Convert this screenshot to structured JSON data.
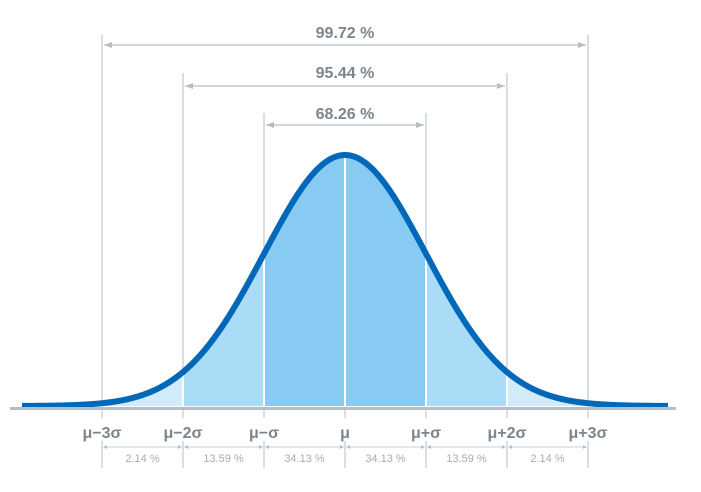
{
  "chart_data": {
    "type": "area",
    "colors": {
      "curve": "#0068b8",
      "band1": "#88cbf2",
      "band2": "#abdcf7",
      "band3": "#d2ebfa",
      "guides": "#b4bec6",
      "text": "#7b858e"
    },
    "ranges": [
      {
        "label": "68.26 %",
        "from_sigma": -1,
        "to_sigma": 1
      },
      {
        "label": "95.44 %",
        "from_sigma": -2,
        "to_sigma": 2
      },
      {
        "label": "99.72 %",
        "from_sigma": -3,
        "to_sigma": 3
      }
    ],
    "tick_labels": [
      "μ−3σ",
      "μ−2σ",
      "μ−σ",
      "μ",
      "μ+σ",
      "μ+2σ",
      "μ+3σ"
    ],
    "segments": [
      {
        "label": "2.14 %",
        "from_sigma": -3,
        "to_sigma": -2
      },
      {
        "label": "13.59 %",
        "from_sigma": -2,
        "to_sigma": -1
      },
      {
        "label": "34.13 %",
        "from_sigma": -1,
        "to_sigma": 0
      },
      {
        "label": "34.13 %",
        "from_sigma": 0,
        "to_sigma": 1
      },
      {
        "label": "13.59 %",
        "from_sigma": 1,
        "to_sigma": 2
      },
      {
        "label": "2.14 %",
        "from_sigma": 2,
        "to_sigma": 3
      }
    ]
  }
}
